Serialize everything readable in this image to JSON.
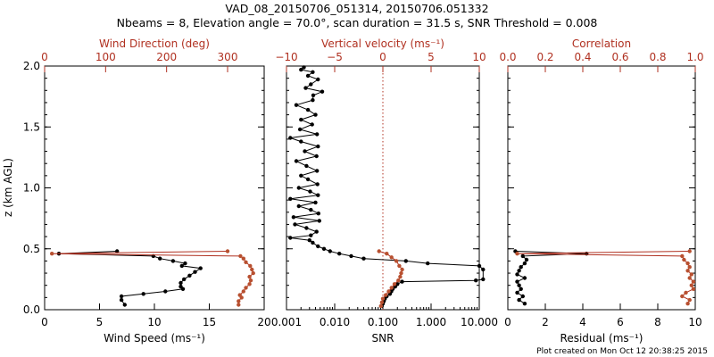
{
  "title_line1": "VAD_08_20150706_051314, 20150706.051332",
  "title_line2": "Nbeams = 8, Elevation angle = 70.0°, scan duration = 31.5 s, SNR Threshold = 0.008",
  "footer": "Plot created on Mon Oct 12 20:38:25 2015",
  "colors": {
    "black": "#000000",
    "red": "#b03020",
    "red_marker": "#b85030"
  },
  "chart_data": [
    {
      "type": "line",
      "panel": "wind",
      "ylabel": "z (km AGL)",
      "ylim": [
        0,
        2.0
      ],
      "yticks": [
        "0.0",
        "0.5",
        "1.0",
        "1.5",
        "2.0"
      ],
      "bottom_axis": {
        "label": "Wind Speed (ms⁻¹)",
        "range": [
          0,
          20
        ],
        "ticks": [
          "0",
          "5",
          "10",
          "15",
          "20"
        ]
      },
      "top_axis": {
        "label": "Wind Direction (deg)",
        "range": [
          0,
          360
        ],
        "ticks": [
          "0",
          "100",
          "200",
          "300"
        ]
      },
      "series": [
        {
          "axis": "bottom",
          "color": "black",
          "points": [
            [
              7.3,
              0.04
            ],
            [
              7.0,
              0.08
            ],
            [
              7.0,
              0.11
            ],
            [
              9.0,
              0.13
            ],
            [
              11.0,
              0.15
            ],
            [
              12.6,
              0.17
            ],
            [
              12.4,
              0.19
            ],
            [
              12.4,
              0.22
            ],
            [
              12.7,
              0.25
            ],
            [
              13.2,
              0.28
            ],
            [
              13.7,
              0.31
            ],
            [
              14.2,
              0.34
            ],
            [
              12.5,
              0.36
            ],
            [
              12.8,
              0.38
            ],
            [
              11.7,
              0.4
            ],
            [
              10.5,
              0.42
            ],
            [
              9.9,
              0.44
            ],
            [
              1.3,
              0.46
            ],
            [
              6.6,
              0.48
            ]
          ]
        },
        {
          "axis": "top",
          "color": "red",
          "points": [
            [
              318,
              0.04
            ],
            [
              318,
              0.07
            ],
            [
              323,
              0.1
            ],
            [
              320,
              0.12
            ],
            [
              326,
              0.15
            ],
            [
              330,
              0.18
            ],
            [
              336,
              0.21
            ],
            [
              338,
              0.24
            ],
            [
              336,
              0.27
            ],
            [
              342,
              0.3
            ],
            [
              340,
              0.33
            ],
            [
              337,
              0.36
            ],
            [
              330,
              0.39
            ],
            [
              326,
              0.42
            ],
            [
              321,
              0.44
            ],
            [
              12,
              0.46
            ],
            [
              300,
              0.48
            ]
          ]
        }
      ]
    },
    {
      "type": "line",
      "panel": "snr",
      "ylim": [
        0,
        2.0
      ],
      "bottom_axis": {
        "label": "SNR",
        "scale": "log",
        "range": [
          0.001,
          10
        ],
        "ticks": [
          "0.001",
          "0.010",
          "0.100",
          "1.000",
          "10.000"
        ]
      },
      "top_axis": {
        "label": "Vertical velocity (ms⁻¹)",
        "range": [
          -10,
          10
        ],
        "ticks": [
          "−10",
          "−5",
          "0",
          "5",
          "10"
        ]
      },
      "reference_line": {
        "axis": "top",
        "value": 0
      },
      "series": [
        {
          "axis": "bottom",
          "color": "black",
          "points": [
            [
              0.095,
              0.03
            ],
            [
              0.1,
              0.05
            ],
            [
              0.105,
              0.07
            ],
            [
              0.11,
              0.09
            ],
            [
              0.12,
              0.11
            ],
            [
              0.14,
              0.13
            ],
            [
              0.15,
              0.15
            ],
            [
              0.16,
              0.17
            ],
            [
              0.18,
              0.19
            ],
            [
              0.2,
              0.21
            ],
            [
              0.25,
              0.23
            ],
            [
              8.5,
              0.24
            ],
            [
              12.0,
              0.25
            ],
            [
              12.0,
              0.33
            ],
            [
              10.0,
              0.36
            ],
            [
              0.85,
              0.38
            ],
            [
              0.3,
              0.4
            ],
            [
              0.04,
              0.42
            ],
            [
              0.022,
              0.44
            ],
            [
              0.0125,
              0.46
            ],
            [
              0.008,
              0.48
            ],
            [
              0.006,
              0.5
            ],
            [
              0.0045,
              0.52
            ],
            [
              0.0035,
              0.55
            ],
            [
              0.003,
              0.57
            ],
            [
              0.0012,
              0.59
            ],
            [
              0.0032,
              0.61
            ],
            [
              0.0042,
              0.64
            ],
            [
              0.0026,
              0.67
            ],
            [
              0.0015,
              0.7
            ],
            [
              0.0048,
              0.73
            ],
            [
              0.0014,
              0.76
            ],
            [
              0.0046,
              0.79
            ],
            [
              0.0032,
              0.82
            ],
            [
              0.0018,
              0.85
            ],
            [
              0.004,
              0.88
            ],
            [
              0.0012,
              0.91
            ],
            [
              0.0045,
              0.94
            ],
            [
              0.0031,
              0.97
            ],
            [
              0.0018,
              1.0
            ],
            [
              0.0044,
              1.03
            ],
            [
              0.0028,
              1.07
            ],
            [
              0.002,
              1.1
            ],
            [
              0.0043,
              1.14
            ],
            [
              0.0026,
              1.18
            ],
            [
              0.0016,
              1.22
            ],
            [
              0.0042,
              1.26
            ],
            [
              0.0024,
              1.3
            ],
            [
              0.0045,
              1.34
            ],
            [
              0.002,
              1.38
            ],
            [
              0.0012,
              1.41
            ],
            [
              0.0043,
              1.44
            ],
            [
              0.0019,
              1.48
            ],
            [
              0.0034,
              1.52
            ],
            [
              0.002,
              1.56
            ],
            [
              0.004,
              1.6
            ],
            [
              0.0028,
              1.64
            ],
            [
              0.0016,
              1.68
            ],
            [
              0.0035,
              1.72
            ],
            [
              0.0036,
              1.76
            ],
            [
              0.0055,
              1.79
            ],
            [
              0.0025,
              1.82
            ],
            [
              0.0032,
              1.85
            ],
            [
              0.0045,
              1.89
            ],
            [
              0.0028,
              1.92
            ],
            [
              0.0035,
              1.95
            ],
            [
              0.002,
              1.97
            ],
            [
              0.0023,
              1.99
            ]
          ]
        },
        {
          "axis": "top",
          "color": "red",
          "points": [
            [
              -0.2,
              0.03
            ],
            [
              -0.1,
              0.06
            ],
            [
              0.0,
              0.09
            ],
            [
              0.3,
              0.12
            ],
            [
              0.6,
              0.15
            ],
            [
              0.9,
              0.18
            ],
            [
              1.2,
              0.21
            ],
            [
              1.6,
              0.24
            ],
            [
              1.8,
              0.27
            ],
            [
              1.9,
              0.3
            ],
            [
              2.0,
              0.33
            ],
            [
              1.7,
              0.36
            ],
            [
              1.4,
              0.4
            ],
            [
              0.9,
              0.43
            ],
            [
              0.4,
              0.46
            ],
            [
              -0.4,
              0.48
            ]
          ]
        }
      ]
    },
    {
      "type": "line",
      "panel": "residual",
      "ylim": [
        0,
        2.0
      ],
      "bottom_axis": {
        "label": "Residual (ms⁻¹)",
        "range": [
          0,
          10
        ],
        "ticks": [
          "0",
          "2",
          "4",
          "6",
          "8",
          "10"
        ]
      },
      "top_axis": {
        "label": "Correlation",
        "range": [
          0,
          1.0
        ],
        "ticks": [
          "0.0",
          "0.2",
          "0.4",
          "0.6",
          "0.8",
          "1.0"
        ]
      },
      "series": [
        {
          "axis": "bottom",
          "color": "black",
          "points": [
            [
              0.9,
              0.05
            ],
            [
              0.6,
              0.08
            ],
            [
              0.8,
              0.11
            ],
            [
              0.5,
              0.14
            ],
            [
              0.7,
              0.17
            ],
            [
              0.6,
              0.2
            ],
            [
              0.5,
              0.23
            ],
            [
              0.9,
              0.26
            ],
            [
              0.5,
              0.29
            ],
            [
              0.6,
              0.32
            ],
            [
              0.7,
              0.35
            ],
            [
              0.9,
              0.38
            ],
            [
              1.0,
              0.41
            ],
            [
              0.8,
              0.44
            ],
            [
              4.2,
              0.46
            ],
            [
              0.4,
              0.48
            ]
          ]
        },
        {
          "axis": "top",
          "color": "red",
          "points": [
            [
              0.96,
              0.05
            ],
            [
              0.97,
              0.08
            ],
            [
              0.93,
              0.11
            ],
            [
              0.95,
              0.14
            ],
            [
              0.99,
              0.17
            ],
            [
              0.98,
              0.2
            ],
            [
              0.99,
              0.23
            ],
            [
              0.97,
              0.26
            ],
            [
              0.98,
              0.29
            ],
            [
              0.96,
              0.32
            ],
            [
              0.97,
              0.35
            ],
            [
              0.96,
              0.38
            ],
            [
              0.94,
              0.41
            ],
            [
              0.93,
              0.44
            ],
            [
              0.05,
              0.46
            ],
            [
              0.97,
              0.48
            ]
          ]
        }
      ]
    }
  ]
}
